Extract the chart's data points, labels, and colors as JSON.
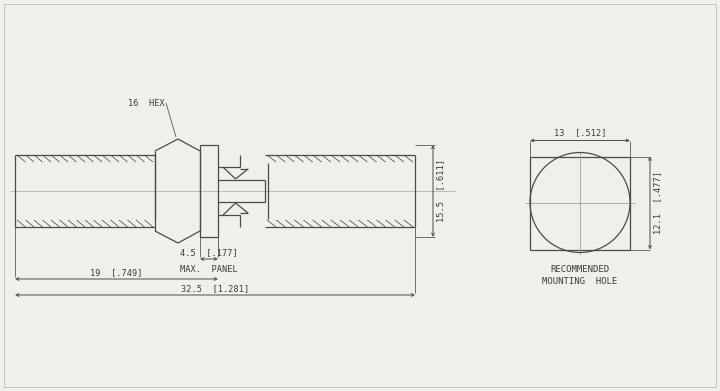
{
  "bg_color": "#f0f0eb",
  "line_color": "#4a4a4a",
  "lw": 0.9,
  "thin_lw": 0.55,
  "dim_color": "#4a4a4a",
  "text_color": "#3a3a3a",
  "font_size": 6.2,
  "annotations": {
    "hex_label": "16  HEX",
    "dim_155": "15.5  [.611]",
    "dim_45": "4.5  [.177]",
    "dim_max_panel": "MAX.  PANEL",
    "dim_19": "19  [.749]",
    "dim_325": "32.5  [1.281]",
    "dim_13": "13  [.512]",
    "dim_121": "12.1  [.477]",
    "rec_label1": "RECOMMENDED",
    "rec_label2": "MOUNTING  HOLE"
  }
}
